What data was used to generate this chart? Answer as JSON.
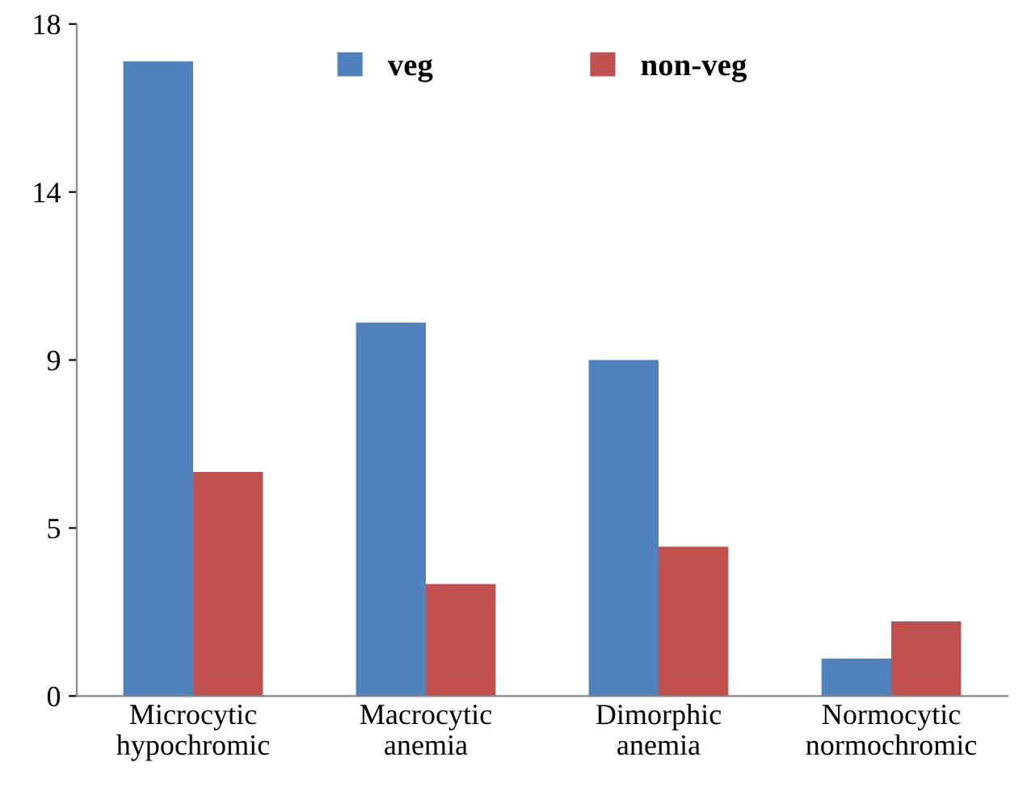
{
  "chart_data": {
    "type": "bar",
    "categories": [
      "Microcytic\nhypochromic",
      "Macrocytic\nanemia",
      "Dimorphic\nanemia",
      "Normocytic\nnormochromic"
    ],
    "series": [
      {
        "name": "veg",
        "color": "#4f81bd",
        "values": [
          17,
          10,
          9,
          1
        ]
      },
      {
        "name": "non-veg",
        "color": "#c0504d",
        "values": [
          6,
          3,
          4,
          2
        ]
      }
    ],
    "ylim": [
      0,
      18
    ],
    "yticks": [
      0,
      {
        "value": 4.5,
        "label": "5"
      },
      9,
      {
        "value": 13.5,
        "label": "14"
      },
      18
    ],
    "grid": false,
    "legend": "top"
  }
}
